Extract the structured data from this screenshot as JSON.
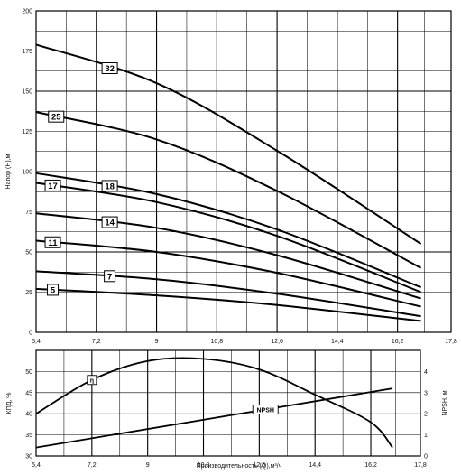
{
  "chart_data": [
    {
      "type": "line",
      "ylabel": "Напор (H),м",
      "xlim": [
        5.4,
        17.8
      ],
      "ylim": [
        0,
        200
      ],
      "x_ticks": [
        "5,4",
        "7,2",
        "9",
        "10,8",
        "12,6",
        "14,4",
        "16,2",
        "17,8"
      ],
      "y_ticks": [
        "0",
        "25",
        "50",
        "75",
        "100",
        "125",
        "150",
        "175",
        "200"
      ],
      "grid": true,
      "series": [
        {
          "name": "32",
          "x": [
            5.4,
            9,
            12.6,
            16.9
          ],
          "y": [
            179,
            155,
            113,
            55
          ]
        },
        {
          "name": "25",
          "x": [
            5.4,
            9,
            12.6,
            16.9
          ],
          "y": [
            137,
            120,
            88,
            40
          ]
        },
        {
          "name": "18",
          "x": [
            5.4,
            9,
            12.6,
            16.9
          ],
          "y": [
            99,
            86,
            64,
            28
          ]
        },
        {
          "name": "17",
          "x": [
            5.4,
            9,
            12.6,
            16.9
          ],
          "y": [
            93,
            81,
            60,
            25
          ]
        },
        {
          "name": "14",
          "x": [
            5.4,
            9,
            12.6,
            16.9
          ],
          "y": [
            74,
            65,
            48,
            21
          ]
        },
        {
          "name": "11",
          "x": [
            5.4,
            9,
            12.6,
            16.9
          ],
          "y": [
            57,
            50,
            37,
            16
          ]
        },
        {
          "name": "7",
          "x": [
            5.4,
            9,
            12.6,
            16.9
          ],
          "y": [
            38,
            33,
            24,
            10
          ]
        },
        {
          "name": "5",
          "x": [
            5.4,
            9,
            12.6,
            16.9
          ],
          "y": [
            27,
            23,
            17,
            7
          ]
        }
      ]
    },
    {
      "type": "line",
      "xlabel": "Производительность (Q),м³/ч",
      "ylabel_left": "КПД, %",
      "ylabel_right": "NPSH, м",
      "xlim": [
        5.4,
        17.8
      ],
      "ylim_left": [
        30,
        55
      ],
      "ylim_right": [
        0,
        5
      ],
      "x_ticks": [
        "5,4",
        "7,2",
        "9",
        "10,8",
        "12,6",
        "14,4",
        "16,2",
        "17,8"
      ],
      "y_ticks_left": [
        "30",
        "35",
        "40",
        "45",
        "50"
      ],
      "y_ticks_right": [
        "0",
        "1",
        "2",
        "3",
        "4"
      ],
      "grid": true,
      "series": [
        {
          "name": "η",
          "axis": "left",
          "x": [
            5.4,
            7.2,
            9,
            10.8,
            12.6,
            14.4,
            16.2,
            16.9
          ],
          "y": [
            40,
            48,
            52.5,
            53,
            50.5,
            44.5,
            38,
            32
          ]
        },
        {
          "name": "NPSH",
          "axis": "right",
          "x": [
            5.4,
            16.9
          ],
          "y": [
            0.4,
            3.2
          ]
        }
      ]
    }
  ]
}
